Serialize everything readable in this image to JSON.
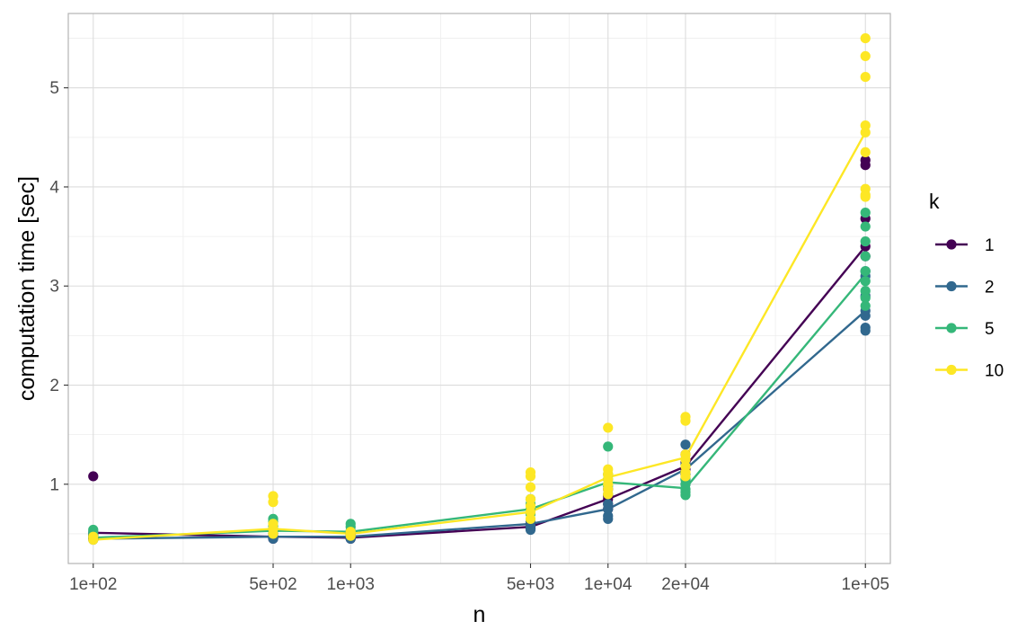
{
  "chart_data": {
    "type": "scatter",
    "xlabel": "n",
    "ylabel": "computation time [sec]",
    "x_scale": "log10",
    "x_ticks": [
      100,
      500,
      1000,
      5000,
      10000,
      20000,
      100000
    ],
    "x_tick_labels": [
      "1e+02",
      "5e+02",
      "1e+03",
      "5e+03",
      "1e+04",
      "2e+04",
      "1e+05"
    ],
    "y_ticks": [
      1,
      2,
      3,
      4,
      5
    ],
    "y_tick_labels": [
      "1",
      "2",
      "3",
      "4",
      "5"
    ],
    "xlim": [
      80,
      125000
    ],
    "ylim": [
      0.2,
      5.75
    ],
    "grid": true,
    "legend": {
      "title": "k",
      "position": "right"
    },
    "series": [
      {
        "name": "1",
        "color": "#440154",
        "mean": [
          [
            100,
            0.51
          ],
          [
            500,
            0.47
          ],
          [
            1000,
            0.46
          ],
          [
            5000,
            0.57
          ],
          [
            10000,
            0.85
          ],
          [
            20000,
            1.18
          ],
          [
            100000,
            3.4
          ]
        ],
        "points": [
          [
            100,
            1.08
          ],
          [
            100,
            0.5
          ],
          [
            100,
            0.48
          ],
          [
            100,
            0.46
          ],
          [
            100,
            0.45
          ],
          [
            500,
            0.5
          ],
          [
            500,
            0.48
          ],
          [
            500,
            0.46
          ],
          [
            500,
            0.45
          ],
          [
            1000,
            0.48
          ],
          [
            1000,
            0.46
          ],
          [
            1000,
            0.45
          ],
          [
            5000,
            0.6
          ],
          [
            5000,
            0.58
          ],
          [
            5000,
            0.56
          ],
          [
            5000,
            0.55
          ],
          [
            10000,
            0.95
          ],
          [
            10000,
            0.88
          ],
          [
            10000,
            0.85
          ],
          [
            10000,
            0.8
          ],
          [
            10000,
            0.75
          ],
          [
            20000,
            1.3
          ],
          [
            20000,
            1.22
          ],
          [
            20000,
            1.15
          ],
          [
            20000,
            1.1
          ],
          [
            20000,
            1.05
          ],
          [
            100000,
            4.27
          ],
          [
            100000,
            4.22
          ],
          [
            100000,
            3.68
          ],
          [
            100000,
            3.4
          ],
          [
            100000,
            3.3
          ]
        ]
      },
      {
        "name": "2",
        "color": "#31688e",
        "mean": [
          [
            100,
            0.45
          ],
          [
            500,
            0.47
          ],
          [
            1000,
            0.47
          ],
          [
            5000,
            0.6
          ],
          [
            10000,
            0.75
          ],
          [
            20000,
            1.15
          ],
          [
            100000,
            2.75
          ]
        ],
        "points": [
          [
            100,
            0.52
          ],
          [
            100,
            0.48
          ],
          [
            100,
            0.46
          ],
          [
            100,
            0.44
          ],
          [
            500,
            0.5
          ],
          [
            500,
            0.47
          ],
          [
            500,
            0.45
          ],
          [
            1000,
            0.5
          ],
          [
            1000,
            0.47
          ],
          [
            1000,
            0.45
          ],
          [
            5000,
            0.62
          ],
          [
            5000,
            0.58
          ],
          [
            5000,
            0.54
          ],
          [
            10000,
            0.8
          ],
          [
            10000,
            0.75
          ],
          [
            10000,
            0.68
          ],
          [
            10000,
            0.65
          ],
          [
            20000,
            1.4
          ],
          [
            20000,
            1.2
          ],
          [
            20000,
            1.1
          ],
          [
            20000,
            1.0
          ],
          [
            100000,
            3.15
          ],
          [
            100000,
            3.1
          ],
          [
            100000,
            2.9
          ],
          [
            100000,
            2.75
          ],
          [
            100000,
            2.7
          ],
          [
            100000,
            2.58
          ],
          [
            100000,
            2.55
          ]
        ]
      },
      {
        "name": "5",
        "color": "#35b779",
        "mean": [
          [
            100,
            0.46
          ],
          [
            500,
            0.53
          ],
          [
            1000,
            0.52
          ],
          [
            5000,
            0.75
          ],
          [
            10000,
            1.02
          ],
          [
            20000,
            0.96
          ],
          [
            100000,
            3.12
          ]
        ],
        "points": [
          [
            100,
            0.54
          ],
          [
            100,
            0.5
          ],
          [
            100,
            0.47
          ],
          [
            500,
            0.65
          ],
          [
            500,
            0.62
          ],
          [
            500,
            0.58
          ],
          [
            500,
            0.55
          ],
          [
            500,
            0.52
          ],
          [
            1000,
            0.6
          ],
          [
            1000,
            0.57
          ],
          [
            1000,
            0.53
          ],
          [
            5000,
            0.85
          ],
          [
            5000,
            0.8
          ],
          [
            5000,
            0.75
          ],
          [
            5000,
            0.7
          ],
          [
            10000,
            1.38
          ],
          [
            10000,
            1.1
          ],
          [
            10000,
            1.05
          ],
          [
            10000,
            0.98
          ],
          [
            10000,
            0.9
          ],
          [
            20000,
            1.05
          ],
          [
            20000,
            1.0
          ],
          [
            20000,
            0.95
          ],
          [
            20000,
            0.92
          ],
          [
            20000,
            0.89
          ],
          [
            100000,
            3.74
          ],
          [
            100000,
            3.6
          ],
          [
            100000,
            3.45
          ],
          [
            100000,
            3.3
          ],
          [
            100000,
            3.15
          ],
          [
            100000,
            3.05
          ],
          [
            100000,
            2.95
          ],
          [
            100000,
            2.88
          ],
          [
            100000,
            2.8
          ]
        ]
      },
      {
        "name": "10",
        "color": "#fde725",
        "mean": [
          [
            100,
            0.44
          ],
          [
            500,
            0.55
          ],
          [
            1000,
            0.5
          ],
          [
            5000,
            0.72
          ],
          [
            10000,
            1.07
          ],
          [
            20000,
            1.27
          ],
          [
            100000,
            4.55
          ]
        ],
        "points": [
          [
            100,
            0.47
          ],
          [
            100,
            0.44
          ],
          [
            500,
            0.88
          ],
          [
            500,
            0.82
          ],
          [
            500,
            0.6
          ],
          [
            500,
            0.55
          ],
          [
            500,
            0.5
          ],
          [
            1000,
            0.52
          ],
          [
            1000,
            0.5
          ],
          [
            1000,
            0.48
          ],
          [
            5000,
            1.12
          ],
          [
            5000,
            1.08
          ],
          [
            5000,
            0.97
          ],
          [
            5000,
            0.85
          ],
          [
            5000,
            0.78
          ],
          [
            5000,
            0.72
          ],
          [
            5000,
            0.65
          ],
          [
            10000,
            1.57
          ],
          [
            10000,
            1.15
          ],
          [
            10000,
            1.1
          ],
          [
            10000,
            1.05
          ],
          [
            10000,
            1.0
          ],
          [
            10000,
            0.95
          ],
          [
            10000,
            0.9
          ],
          [
            20000,
            1.68
          ],
          [
            20000,
            1.64
          ],
          [
            20000,
            1.3
          ],
          [
            20000,
            1.25
          ],
          [
            20000,
            1.18
          ],
          [
            20000,
            1.12
          ],
          [
            20000,
            1.08
          ],
          [
            100000,
            5.5
          ],
          [
            100000,
            5.32
          ],
          [
            100000,
            5.11
          ],
          [
            100000,
            4.62
          ],
          [
            100000,
            4.55
          ],
          [
            100000,
            4.35
          ],
          [
            100000,
            3.98
          ],
          [
            100000,
            3.92
          ],
          [
            100000,
            3.9
          ]
        ]
      }
    ]
  }
}
